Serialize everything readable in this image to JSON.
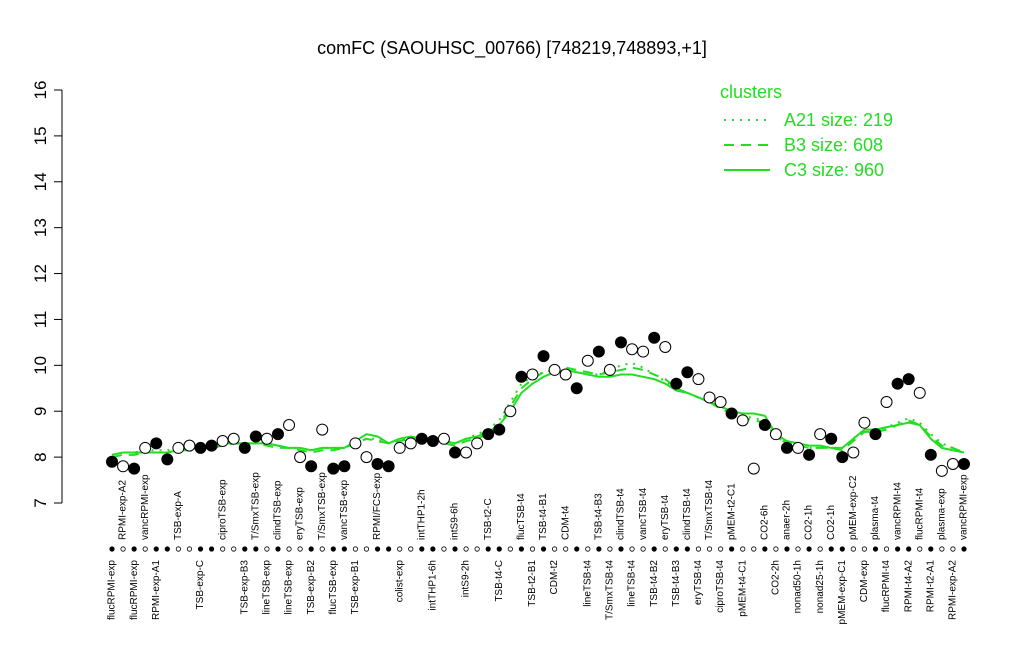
{
  "chart_data": {
    "type": "line",
    "title": "comFC (SAOUHSC_00766) [748219,748893,+1]",
    "ylim": [
      7,
      16
    ],
    "yticks": [
      7,
      8,
      9,
      10,
      11,
      12,
      13,
      14,
      15,
      16
    ],
    "legend_title": "clusters",
    "legend_position": "top-right",
    "point_color": "#000000",
    "categories": [
      "flucRPMI-exp",
      "RPMI-exp-A2",
      "flucRPMI-exp",
      "vancRPMI-exp",
      "RPMI-exp-A1",
      null,
      "TSB-exp-A",
      null,
      "TSB-exp-C",
      null,
      "ciproTSB-exp",
      null,
      "TSB-exp-B3",
      "T/SmxTSB-exp",
      "lineTSB-exp",
      "clindTSB-exp",
      "lineTSB-exp",
      "eryTSB-exp",
      "TSB-exp-B2",
      "T/SmxTSB-exp",
      "flucTSB-exp",
      "vancTSB-exp",
      "TSB-exp-B1",
      null,
      "RPMI/FCS-exp",
      null,
      "colist-exp",
      null,
      "intTHP1-2h",
      "intTHP1-6h",
      null,
      "intS9-6h",
      "intS9-2h",
      null,
      "TSB-t2-C",
      "TSB-t4-C",
      null,
      "flucTSB-t4",
      "TSB-t2-B1",
      "TSB-t4-B1",
      "CDM-t2",
      "CDM-t4",
      null,
      "lineTSB-t4",
      "TSB-t4-B3",
      "T/SmxTSB-t4",
      "clindTSB-t4",
      "lineTSB-t4",
      "vancTSB-t4",
      "TSB-t4-B2",
      "eryTSB-t4",
      "TSB-t4-B3",
      "clindTSB-t4",
      "eryTSB-t4",
      "T/SmxTSB-t4",
      "ciproTSB-t4",
      "pMEM-t2-C1",
      "pMEM-t4-C1",
      null,
      "CO2-6h",
      "CO2-2h",
      "anaer-2h",
      "nonad50-1h",
      "CO2-1h",
      "nonad25-1h",
      "CO2-1h",
      "pMEM-exp-C1",
      "pMEM-exp-C2",
      "CDM-exp",
      "plasma-t4",
      "flucRPMI-t4",
      "vancRPMI-t4",
      "RPMI-t4-A2",
      "flucRPMI-t4",
      "RPMI-t2-A1",
      "plasma-exp",
      "RPMI-exp-A2",
      "vancRPMI-exp"
    ],
    "values": [
      7.9,
      7.8,
      7.75,
      8.2,
      8.3,
      7.95,
      8.2,
      8.25,
      8.2,
      8.25,
      8.35,
      8.4,
      8.2,
      8.45,
      8.4,
      8.5,
      8.7,
      8.0,
      7.8,
      8.6,
      7.75,
      7.8,
      8.3,
      8.0,
      7.85,
      7.8,
      8.2,
      8.3,
      8.4,
      8.35,
      8.4,
      8.1,
      8.1,
      8.3,
      8.5,
      8.6,
      9.0,
      9.75,
      9.8,
      10.2,
      9.9,
      9.8,
      9.5,
      10.1,
      10.3,
      9.9,
      10.5,
      10.35,
      10.3,
      10.6,
      10.4,
      9.6,
      9.85,
      9.7,
      9.3,
      9.2,
      8.95,
      8.8,
      7.75,
      8.7,
      8.5,
      8.2,
      8.2,
      8.05,
      8.5,
      8.4,
      8.0,
      8.1,
      8.75,
      8.5,
      9.2,
      9.6,
      9.7,
      9.4,
      8.05,
      7.7,
      7.85,
      7.85
    ],
    "filled": [
      true,
      false,
      true,
      false,
      true,
      true,
      false,
      false,
      true,
      true,
      false,
      false,
      true,
      true,
      false,
      true,
      false,
      false,
      true,
      false,
      true,
      true,
      false,
      false,
      true,
      true,
      false,
      false,
      true,
      true,
      false,
      true,
      false,
      false,
      true,
      true,
      false,
      true,
      false,
      true,
      false,
      false,
      true,
      false,
      true,
      false,
      true,
      false,
      false,
      true,
      false,
      true,
      true,
      false,
      false,
      false,
      true,
      false,
      false,
      true,
      false,
      true,
      false,
      true,
      false,
      true,
      true,
      false,
      false,
      true,
      false,
      true,
      true,
      false,
      true,
      false,
      false,
      true
    ],
    "series": [
      {
        "name": "A21 size: 219",
        "color": "#22dd22",
        "dash": "dotted",
        "values": [
          8.05,
          8.1,
          8.1,
          8.15,
          8.15,
          8.15,
          8.2,
          8.2,
          8.25,
          8.25,
          8.3,
          8.3,
          8.3,
          8.3,
          8.3,
          8.25,
          8.2,
          8.2,
          8.15,
          8.2,
          8.2,
          8.2,
          8.3,
          8.4,
          8.4,
          8.3,
          8.4,
          8.4,
          8.4,
          8.4,
          8.35,
          8.3,
          8.4,
          8.5,
          8.6,
          8.8,
          9.2,
          9.6,
          9.75,
          9.85,
          9.9,
          9.9,
          9.85,
          9.8,
          9.8,
          9.9,
          10.0,
          10.05,
          9.95,
          9.8,
          9.65,
          9.5,
          9.4,
          9.3,
          9.2,
          9.1,
          9.0,
          8.9,
          8.85,
          8.8,
          8.45,
          8.3,
          8.25,
          8.2,
          8.2,
          8.2,
          8.2,
          8.4,
          8.6,
          8.6,
          8.65,
          8.75,
          8.85,
          8.75,
          8.5,
          8.3,
          8.2,
          8.1
        ]
      },
      {
        "name": "B3 size: 608",
        "color": "#22dd22",
        "dash": "dashed",
        "values": [
          8.0,
          8.05,
          8.05,
          8.1,
          8.1,
          8.1,
          8.15,
          8.15,
          8.2,
          8.2,
          8.25,
          8.3,
          8.3,
          8.3,
          8.25,
          8.2,
          8.2,
          8.15,
          8.1,
          8.15,
          8.15,
          8.2,
          8.3,
          8.4,
          8.35,
          8.3,
          8.35,
          8.4,
          8.4,
          8.4,
          8.3,
          8.25,
          8.35,
          8.4,
          8.5,
          8.7,
          9.1,
          9.5,
          9.7,
          9.85,
          9.9,
          9.95,
          9.9,
          9.85,
          9.8,
          9.85,
          9.9,
          9.95,
          9.9,
          9.8,
          9.7,
          9.5,
          9.4,
          9.3,
          9.2,
          9.05,
          8.95,
          8.85,
          8.8,
          8.75,
          8.45,
          8.3,
          8.25,
          8.2,
          8.2,
          8.2,
          8.15,
          8.35,
          8.55,
          8.55,
          8.6,
          8.7,
          8.8,
          8.7,
          8.45,
          8.25,
          8.2,
          8.1
        ]
      },
      {
        "name": "C3 size: 960",
        "color": "#22dd22",
        "dash": "solid",
        "values": [
          8.05,
          8.1,
          8.1,
          8.1,
          8.1,
          8.1,
          8.15,
          8.2,
          8.2,
          8.25,
          8.3,
          8.3,
          8.3,
          8.3,
          8.3,
          8.25,
          8.2,
          8.2,
          8.15,
          8.2,
          8.2,
          8.2,
          8.35,
          8.5,
          8.45,
          8.3,
          8.4,
          8.45,
          8.4,
          8.4,
          8.35,
          8.3,
          8.4,
          8.45,
          8.55,
          8.7,
          9.0,
          9.4,
          9.6,
          9.75,
          9.85,
          9.9,
          9.85,
          9.8,
          9.75,
          9.75,
          9.8,
          9.8,
          9.75,
          9.7,
          9.6,
          9.45,
          9.4,
          9.3,
          9.2,
          9.1,
          9.0,
          8.95,
          8.95,
          8.9,
          8.5,
          8.35,
          8.3,
          8.25,
          8.25,
          8.2,
          8.2,
          8.4,
          8.6,
          8.6,
          8.65,
          8.7,
          8.75,
          8.7,
          8.4,
          8.2,
          8.15,
          8.1
        ]
      }
    ]
  }
}
